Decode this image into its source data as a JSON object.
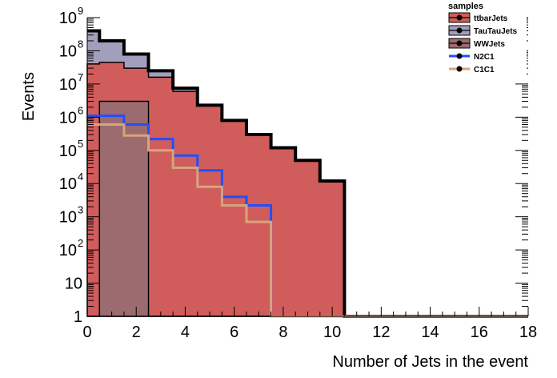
{
  "chart_data": {
    "type": "step-histogram",
    "xlabel": "Number of Jets in the event",
    "ylabel": "Events",
    "xlim": [
      0,
      18
    ],
    "ylim": [
      1,
      1000000000
    ],
    "y_scale": "log",
    "x_ticks": [
      0,
      2,
      4,
      6,
      8,
      10,
      12,
      14,
      16,
      18
    ],
    "x_tick_labels": [
      "0",
      "2",
      "4",
      "6",
      "8",
      "10",
      "12",
      "14",
      "16",
      "18"
    ],
    "y_tick_labels": [
      {
        "value": 1,
        "base": "1",
        "exp": ""
      },
      {
        "value": 10,
        "base": "10",
        "exp": ""
      },
      {
        "value": 100,
        "base": "10",
        "exp": "2"
      },
      {
        "value": 1000,
        "base": "10",
        "exp": "3"
      },
      {
        "value": 10000,
        "base": "10",
        "exp": "4"
      },
      {
        "value": 100000,
        "base": "10",
        "exp": "5"
      },
      {
        "value": 1000000,
        "base": "10",
        "exp": "6"
      },
      {
        "value": 10000000,
        "base": "10",
        "exp": "7"
      },
      {
        "value": 100000000,
        "base": "10",
        "exp": "8"
      },
      {
        "value": 1000000000,
        "base": "10",
        "exp": "9"
      }
    ],
    "bin_edges": [
      -0.5,
      0.5,
      1.5,
      2.5,
      3.5,
      4.5,
      5.5,
      6.5,
      7.5,
      8.5,
      9.5,
      10.5,
      11.5,
      12.5,
      13.5,
      14.5,
      15.5,
      16.5,
      17.5,
      18.5
    ],
    "series": [
      {
        "name": "TauTauJets",
        "kind": "stack-top",
        "color": "#a29fbd",
        "values": [
          400000000,
          200000000,
          80000000,
          25000000,
          7500000,
          2300000,
          800000,
          300000,
          120000,
          50000,
          12000,
          1,
          1,
          1,
          1,
          1,
          1,
          1,
          1
        ]
      },
      {
        "name": "ttbarJets",
        "kind": "filled",
        "color": "#d15c5c",
        "values": [
          40000000,
          45000000,
          30000000,
          16000000,
          6000000,
          2300000,
          800000,
          300000,
          120000,
          50000,
          12000,
          1,
          1,
          1,
          1,
          1,
          1,
          1,
          1
        ]
      },
      {
        "name": "WWJets",
        "kind": "filled",
        "color": "#9b6b70",
        "values": [
          1,
          3000000,
          3000000,
          1,
          1,
          1,
          1,
          1,
          1,
          1,
          1,
          1,
          1,
          1,
          1,
          1,
          1,
          1,
          1
        ]
      },
      {
        "name": "N2C1",
        "kind": "line",
        "color": "#1f4fff",
        "values": [
          1100000,
          1100000,
          600000,
          220000,
          70000,
          25000,
          4000,
          2200,
          1,
          1,
          1,
          1,
          1,
          1,
          1,
          1,
          1,
          1,
          1
        ]
      },
      {
        "name": "C1C1",
        "kind": "line",
        "color": "#d7a47c",
        "values": [
          600000,
          600000,
          280000,
          100000,
          30000,
          8000,
          2200,
          700,
          1,
          1,
          1,
          1,
          1,
          1,
          1,
          1,
          1,
          1,
          1
        ]
      }
    ],
    "legend": {
      "title": "samples",
      "position": "top-right",
      "entries": [
        {
          "label": "ttbarJets",
          "color": "#d15c5c",
          "style": "box"
        },
        {
          "label": "TauTauJets",
          "color": "#a29fbd",
          "style": "box"
        },
        {
          "label": "WWJets",
          "color": "#9b6b70",
          "style": "box"
        },
        {
          "label": "N2C1",
          "color": "#1f4fff",
          "style": "line"
        },
        {
          "label": "C1C1",
          "color": "#d7a47c",
          "style": "line"
        }
      ]
    }
  }
}
